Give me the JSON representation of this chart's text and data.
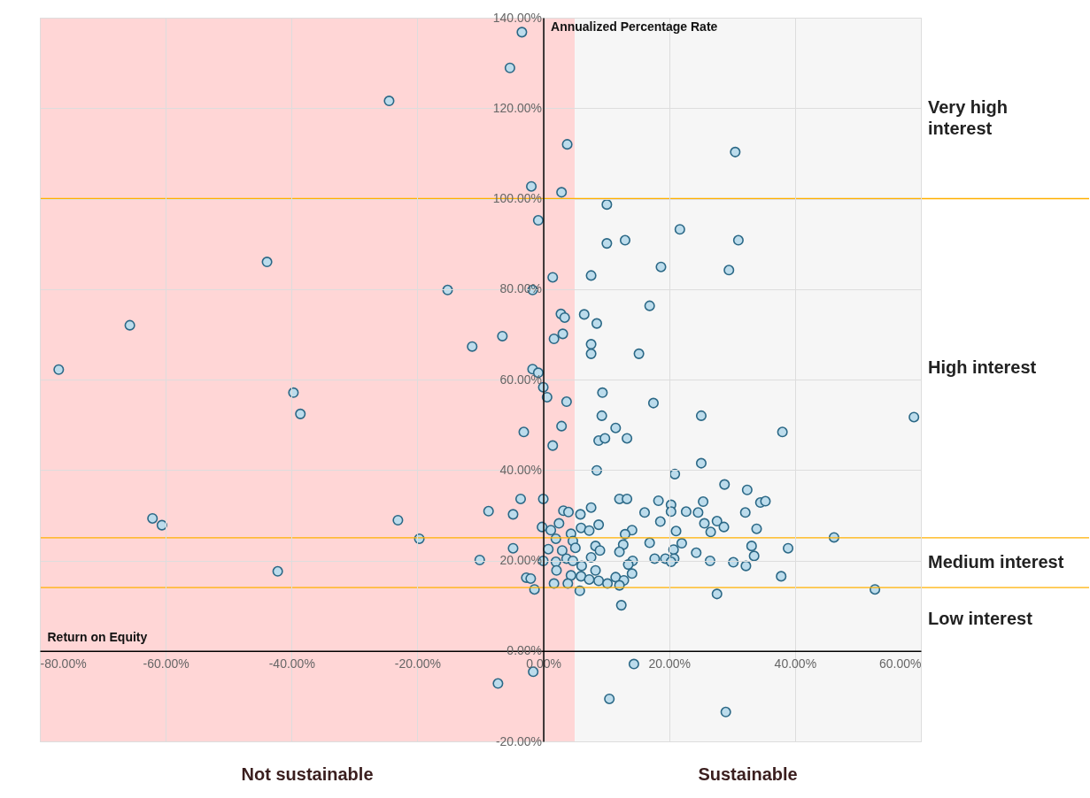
{
  "chart_data": {
    "type": "scatter",
    "xlabel": "Return on Equity",
    "ylabel": "Annualized Percentage Rate",
    "xlim": [
      -80,
      60
    ],
    "ylim": [
      -20,
      140
    ],
    "xticks": [
      {
        "value": -80,
        "label": "-80.00%"
      },
      {
        "value": -60,
        "label": "-60.00%"
      },
      {
        "value": -40,
        "label": "-40.00%"
      },
      {
        "value": -20,
        "label": "-20.00%"
      },
      {
        "value": 0,
        "label": "0.00%"
      },
      {
        "value": 20,
        "label": "20.00%"
      },
      {
        "value": 40,
        "label": "40.00%"
      },
      {
        "value": 60,
        "label": "60.00%"
      }
    ],
    "yticks": [
      {
        "value": -20,
        "label": "-20.00%"
      },
      {
        "value": 0,
        "label": "0.00%"
      },
      {
        "value": 20,
        "label": "20.00%"
      },
      {
        "value": 40,
        "label": "40.00%"
      },
      {
        "value": 60,
        "label": "60.00%"
      },
      {
        "value": 80,
        "label": "80.00%"
      },
      {
        "value": 100,
        "label": "100.00%"
      },
      {
        "value": 120,
        "label": "120.00%"
      },
      {
        "value": 140,
        "label": "140.00%"
      }
    ],
    "grid": true,
    "marker": "circle",
    "series": [
      {
        "color": "#bcdcec",
        "x": [
          -77.0,
          -65.7,
          -62.1,
          -60.6,
          -43.9,
          -42.2,
          -39.7,
          -38.6,
          -24.5,
          -23.1,
          -19.7,
          -15.2,
          -11.3,
          -10.1,
          -8.7,
          -7.2,
          -6.5,
          -3.4,
          -5.3,
          -1.9,
          -0.8,
          3.8,
          2.9,
          10.1,
          10.1,
          13.0,
          21.7,
          18.7,
          7.6,
          1.5,
          30.5,
          31.0,
          29.5,
          -1.7,
          16.9,
          2.8,
          3.4,
          6.5,
          8.5,
          3.1,
          1.7,
          7.6,
          7.6,
          15.2,
          -1.7,
          -0.8,
          0.0,
          0.6,
          3.7,
          9.4,
          17.5,
          25.1,
          9.3,
          -3.1,
          2.9,
          11.5,
          8.8,
          9.8,
          13.3,
          1.5,
          25.1,
          8.5,
          20.9,
          28.8,
          32.4,
          -3.6,
          0.0,
          12.1,
          13.3,
          18.3,
          20.3,
          20.3,
          25.4,
          34.5,
          -4.8,
          3.2,
          4.0,
          7.6,
          5.9,
          16.1,
          22.7,
          24.6,
          32.1,
          18.6,
          25.6,
          27.6,
          28.7,
          26.6,
          33.9,
          -0.2,
          2.5,
          6.0,
          8.8,
          7.3,
          1.2,
          4.4,
          14.1,
          13.0,
          21.1,
          2.0,
          4.7,
          -4.8,
          0.8,
          3.0,
          5.1,
          8.3,
          9.0,
          12.7,
          16.9,
          20.7,
          22.0,
          12.1,
          33.1,
          33.5,
          24.3,
          7.6,
          14.2,
          13.5,
          0.0,
          2.0,
          3.7,
          4.7,
          17.7,
          19.4,
          20.8,
          20.3,
          26.5,
          30.2,
          32.2,
          6.1,
          2.1,
          8.3,
          14.1,
          -2.7,
          -2.0,
          4.4,
          6.0,
          7.3,
          8.8,
          11.5,
          12.8,
          10.2,
          12.1,
          1.7,
          3.9,
          -1.4,
          5.8,
          27.6,
          12.4,
          38.0,
          58.9,
          35.3,
          46.2,
          38.9,
          37.8,
          52.7,
          -1.6,
          14.4,
          10.5,
          29.0
        ],
        "values": [
          62.2,
          72.0,
          29.3,
          27.8,
          86.0,
          17.6,
          57.1,
          52.4,
          121.6,
          28.9,
          24.8,
          79.8,
          67.3,
          20.1,
          30.9,
          -7.2,
          69.6,
          136.8,
          128.9,
          102.7,
          95.2,
          112.0,
          101.4,
          98.7,
          90.1,
          90.8,
          93.2,
          84.9,
          83.0,
          82.6,
          110.3,
          90.8,
          84.2,
          79.8,
          76.3,
          74.5,
          73.7,
          74.4,
          72.4,
          70.1,
          69.0,
          67.8,
          65.7,
          65.7,
          62.3,
          61.5,
          58.3,
          56.1,
          55.1,
          57.1,
          54.8,
          52.0,
          52.0,
          48.4,
          49.7,
          49.3,
          46.5,
          47.0,
          47.0,
          45.4,
          41.5,
          39.9,
          39.1,
          36.8,
          35.6,
          33.6,
          33.6,
          33.6,
          33.6,
          33.2,
          32.3,
          30.8,
          33.0,
          32.8,
          30.2,
          31.0,
          30.7,
          31.7,
          30.2,
          30.6,
          30.8,
          30.6,
          30.6,
          28.6,
          28.2,
          28.7,
          27.4,
          26.3,
          27.0,
          27.4,
          28.2,
          27.2,
          27.9,
          26.6,
          26.7,
          25.9,
          26.7,
          25.8,
          26.5,
          24.8,
          24.3,
          22.7,
          22.5,
          22.2,
          22.8,
          23.2,
          22.2,
          23.5,
          23.9,
          22.4,
          23.8,
          21.9,
          23.2,
          21.0,
          21.7,
          20.7,
          19.9,
          19.1,
          19.9,
          19.7,
          20.4,
          19.9,
          20.4,
          20.4,
          20.4,
          19.7,
          19.9,
          19.6,
          18.8,
          18.8,
          17.8,
          17.8,
          17.1,
          16.2,
          16.0,
          16.7,
          16.5,
          15.8,
          15.5,
          16.3,
          15.6,
          14.9,
          14.5,
          14.9,
          14.9,
          13.6,
          13.3,
          12.6,
          10.1,
          48.4,
          51.7,
          33.1,
          25.1,
          22.7,
          16.5,
          13.6,
          -4.6,
          -2.9,
          -10.6,
          -13.5
        ]
      }
    ],
    "ref_lines": [
      {
        "axis": "y",
        "value": 100,
        "color": "#ffb000"
      },
      {
        "axis": "y",
        "value": 25,
        "color": "#ffb000"
      },
      {
        "axis": "y",
        "value": 14,
        "color": "#ffb000"
      }
    ],
    "bands": [
      {
        "axis": "x",
        "from": -80,
        "to": 5,
        "label": "Not sustainable",
        "color": "#ffd6d6"
      },
      {
        "axis": "x",
        "from": 5,
        "to": 60,
        "label": "Sustainable",
        "color": "#f6f6f6"
      }
    ],
    "annotations": [
      "Very high interest",
      "High interest",
      "Medium interest",
      "Low interest"
    ]
  }
}
